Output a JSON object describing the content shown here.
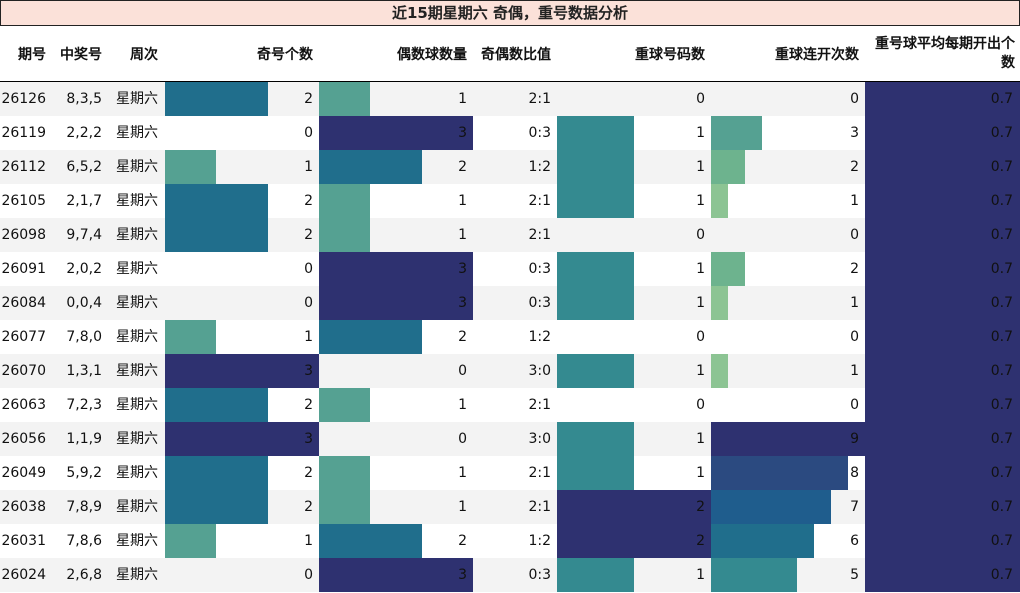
{
  "title": "近15期星期六 奇偶，重号数据分析",
  "headers": {
    "issue": "期号",
    "numbers": "中奖号",
    "weekday": "周次",
    "odd_count": "奇号个数",
    "even_count": "偶数球数量",
    "ratio": "奇偶数比值",
    "repeat_count": "重球号码数",
    "repeat_streak": "重球连开次数",
    "repeat_avg_line1": "重号球平均每期开出个",
    "repeat_avg_line2": "数"
  },
  "column_max": {
    "odd_count": 3,
    "even_count": 3,
    "repeat_count": 2,
    "repeat_streak": 9
  },
  "colors": {
    "header_title_bg": "#fbe1d9",
    "alt_row_bg": "#f3f3f3",
    "scale_dark_navy": "#2e3170",
    "scale_navy": "#2b4a80",
    "scale_dark_teal": "#206e8c",
    "scale_blue_teal": "#1f5d8d",
    "scale_teal": "#348a90",
    "scale_green_teal": "#55a192",
    "scale_green": "#6db38e",
    "scale_light_green": "#8cc493"
  },
  "rows": [
    {
      "issue": "26126",
      "numbers": "8,3,5",
      "weekday": "星期六",
      "odd": 2,
      "even": 1,
      "ratio": "2:1",
      "repeat": 0,
      "streak": 0,
      "avg": "0.7"
    },
    {
      "issue": "26119",
      "numbers": "2,2,2",
      "weekday": "星期六",
      "odd": 0,
      "even": 3,
      "ratio": "0:3",
      "repeat": 1,
      "streak": 3,
      "avg": "0.7"
    },
    {
      "issue": "26112",
      "numbers": "6,5,2",
      "weekday": "星期六",
      "odd": 1,
      "even": 2,
      "ratio": "1:2",
      "repeat": 1,
      "streak": 2,
      "avg": "0.7"
    },
    {
      "issue": "26105",
      "numbers": "2,1,7",
      "weekday": "星期六",
      "odd": 2,
      "even": 1,
      "ratio": "2:1",
      "repeat": 1,
      "streak": 1,
      "avg": "0.7"
    },
    {
      "issue": "26098",
      "numbers": "9,7,4",
      "weekday": "星期六",
      "odd": 2,
      "even": 1,
      "ratio": "2:1",
      "repeat": 0,
      "streak": 0,
      "avg": "0.7"
    },
    {
      "issue": "26091",
      "numbers": "2,0,2",
      "weekday": "星期六",
      "odd": 0,
      "even": 3,
      "ratio": "0:3",
      "repeat": 1,
      "streak": 2,
      "avg": "0.7"
    },
    {
      "issue": "26084",
      "numbers": "0,0,4",
      "weekday": "星期六",
      "odd": 0,
      "even": 3,
      "ratio": "0:3",
      "repeat": 1,
      "streak": 1,
      "avg": "0.7"
    },
    {
      "issue": "26077",
      "numbers": "7,8,0",
      "weekday": "星期六",
      "odd": 1,
      "even": 2,
      "ratio": "1:2",
      "repeat": 0,
      "streak": 0,
      "avg": "0.7"
    },
    {
      "issue": "26070",
      "numbers": "1,3,1",
      "weekday": "星期六",
      "odd": 3,
      "even": 0,
      "ratio": "3:0",
      "repeat": 1,
      "streak": 1,
      "avg": "0.7"
    },
    {
      "issue": "26063",
      "numbers": "7,2,3",
      "weekday": "星期六",
      "odd": 2,
      "even": 1,
      "ratio": "2:1",
      "repeat": 0,
      "streak": 0,
      "avg": "0.7"
    },
    {
      "issue": "26056",
      "numbers": "1,1,9",
      "weekday": "星期六",
      "odd": 3,
      "even": 0,
      "ratio": "3:0",
      "repeat": 1,
      "streak": 9,
      "avg": "0.7"
    },
    {
      "issue": "26049",
      "numbers": "5,9,2",
      "weekday": "星期六",
      "odd": 2,
      "even": 1,
      "ratio": "2:1",
      "repeat": 1,
      "streak": 8,
      "avg": "0.7"
    },
    {
      "issue": "26038",
      "numbers": "7,8,9",
      "weekday": "星期六",
      "odd": 2,
      "even": 1,
      "ratio": "2:1",
      "repeat": 2,
      "streak": 7,
      "avg": "0.7"
    },
    {
      "issue": "26031",
      "numbers": "7,8,6",
      "weekday": "星期六",
      "odd": 1,
      "even": 2,
      "ratio": "1:2",
      "repeat": 2,
      "streak": 6,
      "avg": "0.7"
    },
    {
      "issue": "26024",
      "numbers": "2,6,8",
      "weekday": "星期六",
      "odd": 0,
      "even": 3,
      "ratio": "0:3",
      "repeat": 1,
      "streak": 5,
      "avg": "0.7"
    }
  ]
}
